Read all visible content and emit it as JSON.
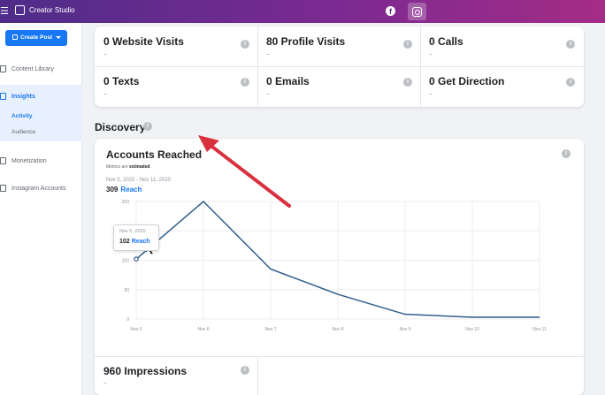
{
  "topbar": {
    "menu_glyph": "☰",
    "app_title": "Creator Studio",
    "fb_glyph": "f"
  },
  "sidebar": {
    "create_label": "Create Post",
    "items": [
      {
        "label": "Content Library"
      },
      {
        "label": "Insights"
      },
      {
        "label": "Monetization"
      },
      {
        "label": "Instagram Accounts"
      }
    ],
    "insights_sub": [
      "Activity",
      "Audience"
    ]
  },
  "stats": [
    {
      "label": "0 Website Visits",
      "sub": "–"
    },
    {
      "label": "80 Profile Visits",
      "sub": "–"
    },
    {
      "label": "0 Calls",
      "sub": "–"
    },
    {
      "label": "0 Texts",
      "sub": "–"
    },
    {
      "label": "0 Emails",
      "sub": "–"
    },
    {
      "label": "0 Get Direction",
      "sub": "–"
    }
  ],
  "discovery": {
    "title": "Discovery",
    "chart_card": {
      "title": "Accounts Reached",
      "metrics_prefix": "Metrics are",
      "metrics_bold": "estimated",
      "date_range": "Nov 5, 2020 - Nov 11, 2020",
      "total": "309",
      "total_label": "Reach"
    },
    "tooltip": {
      "date": "Nov 5, 2020",
      "value": "102",
      "label": "Reach"
    },
    "impressions": {
      "label": "960 Impressions",
      "sub": "–"
    }
  },
  "colors": {
    "accent": "#1877f2",
    "line": "#2f5d8a",
    "arrow": "#d9303e"
  },
  "chart_data": {
    "type": "line",
    "title": "Accounts Reached",
    "x": [
      "Nov 5",
      "Nov 6",
      "Nov 7",
      "Nov 8",
      "Nov 9",
      "Nov 10",
      "Nov 11"
    ],
    "series": [
      {
        "values": [
          102,
          200,
          85,
          42,
          8,
          3,
          3
        ]
      }
    ],
    "y_ticks": [
      0,
      50,
      100,
      150,
      200
    ],
    "ylim": [
      0,
      200
    ],
    "grid": true
  }
}
